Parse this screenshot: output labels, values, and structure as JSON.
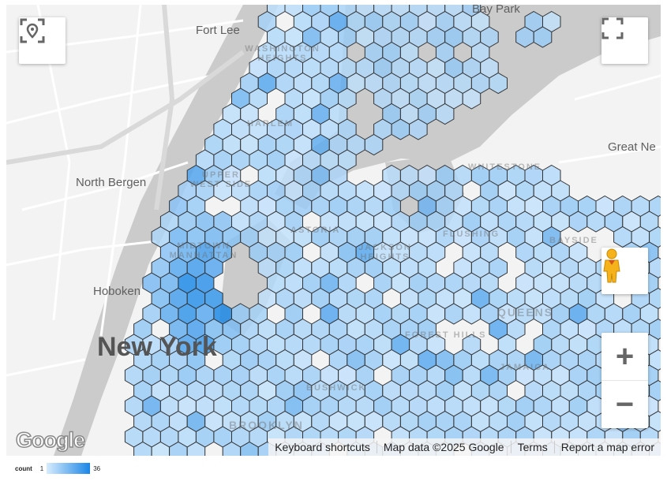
{
  "map": {
    "labels": {
      "fort_lee": "Fort Lee",
      "north_bergen": "North Bergen",
      "hoboken": "Hoboken",
      "new_york": "New York",
      "great_neck": "Great Ne",
      "bay_park": "Bay Park",
      "washington_heights": "WASHINGTON HEIGHTS",
      "harlem": "HARLEM",
      "upper_west_side": "UPPER WEST SIDE",
      "midtown": "MIDTOWN MANHATTAN",
      "astoria": "ASTORIA",
      "jackson_heights": "JACKSON HEIGHTS",
      "flushing": "FLUSHING",
      "whitestone": "WHITESTONE",
      "bayside": "BAYSIDE",
      "queens": "QUEENS",
      "forest_hills": "FOREST HILLS",
      "jamaica": "JAMAICA",
      "bushwick": "BUSHWICK",
      "brooklyn": "BROOKLYN"
    },
    "controls": {
      "locate_icon": "locate-pin-icon",
      "fullscreen_icon": "fullscreen-icon",
      "pegman_icon": "street-view-pegman-icon",
      "zoom_in": "+",
      "zoom_out": "−"
    },
    "attribution": {
      "logo": "Google",
      "keyboard_shortcuts": "Keyboard shortcuts",
      "map_data": "Map data ©2025 Google",
      "terms": "Terms",
      "report": "Report a map error"
    }
  },
  "hexbin": {
    "color_min": "#d7ecfd",
    "color_max": "#1a86e6",
    "stroke": "#333333"
  },
  "legend": {
    "title": "count",
    "min": "1",
    "max": "36"
  }
}
